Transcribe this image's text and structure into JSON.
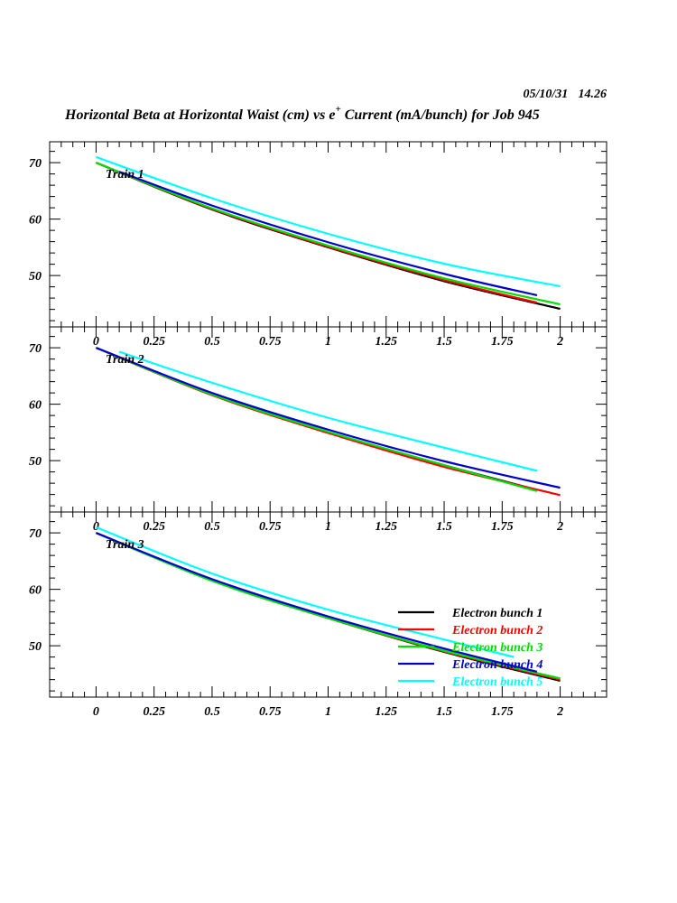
{
  "header": {
    "date": "05/10/31",
    "time": "14.26",
    "title_pre": "Horizontal Beta at Horizontal Waist (cm) vs e",
    "title_sup": "+",
    "title_post": " Current (mA/bunch) for Job 945"
  },
  "chart_data": [
    {
      "type": "line",
      "panel_label": "Train 1",
      "xlim": [
        -0.2,
        2.2
      ],
      "ylim": [
        40.9,
        73.7
      ],
      "xticks": [
        "0",
        "0.25",
        "0.5",
        "0.75",
        "1",
        "1.25",
        "1.5",
        "1.75",
        "2"
      ],
      "yticks": [
        "50",
        "60",
        "70"
      ],
      "series": [
        {
          "name": "Electron bunch 1",
          "color": "#000000",
          "points": [
            [
              0,
              70
            ],
            [
              0.5,
              61.7
            ],
            [
              1,
              55.0
            ],
            [
              1.5,
              49.0
            ],
            [
              2,
              44.1
            ]
          ]
        },
        {
          "name": "Electron bunch 2",
          "color": "#ff0000",
          "points": [
            [
              0,
              70
            ],
            [
              0.5,
              61.8
            ],
            [
              1,
              55.1
            ],
            [
              1.5,
              49.2
            ],
            [
              1.9,
              45.2
            ]
          ]
        },
        {
          "name": "Electron bunch 3",
          "color": "#00dd00",
          "points": [
            [
              0,
              70
            ],
            [
              0.5,
              61.9
            ],
            [
              1,
              55.3
            ],
            [
              1.5,
              49.5
            ],
            [
              2,
              44.9
            ]
          ]
        },
        {
          "name": "Electron bunch 4",
          "color": "#0000cc",
          "points": [
            [
              0.1,
              68.4
            ],
            [
              0.5,
              62.4
            ],
            [
              1,
              55.9
            ],
            [
              1.5,
              50.3
            ],
            [
              1.9,
              46.5
            ]
          ]
        },
        {
          "name": "Electron bunch 5",
          "color": "#00ffff",
          "points": [
            [
              0,
              71
            ],
            [
              0.5,
              63.7
            ],
            [
              1,
              57.4
            ],
            [
              1.5,
              52.1
            ],
            [
              2,
              48.1
            ]
          ]
        }
      ]
    },
    {
      "type": "line",
      "panel_label": "Train 2",
      "xlim": [
        -0.2,
        2.2
      ],
      "ylim": [
        40.9,
        73.7
      ],
      "xticks": [
        "0",
        "0.25",
        "0.5",
        "0.75",
        "1",
        "1.25",
        "1.5",
        "1.75",
        "2"
      ],
      "yticks": [
        "50",
        "60",
        "70"
      ],
      "series": [
        {
          "name": "Electron bunch 1",
          "color": "#000000",
          "points": [
            [
              0,
              70
            ],
            [
              0.5,
              61.7
            ],
            [
              1,
              55.0
            ],
            [
              1.5,
              49.2
            ],
            [
              1.9,
              44.8
            ]
          ]
        },
        {
          "name": "Electron bunch 2",
          "color": "#ff0000",
          "points": [
            [
              0,
              70
            ],
            [
              0.5,
              61.6
            ],
            [
              1,
              54.9
            ],
            [
              1.5,
              48.9
            ],
            [
              2,
              43.9
            ]
          ]
        },
        {
          "name": "Electron bunch 3",
          "color": "#00dd00",
          "points": [
            [
              0,
              70
            ],
            [
              0.5,
              61.7
            ],
            [
              1,
              55.1
            ],
            [
              1.5,
              49.2
            ],
            [
              1.9,
              44.6
            ]
          ]
        },
        {
          "name": "Electron bunch 4",
          "color": "#0000cc",
          "points": [
            [
              0,
              70
            ],
            [
              0.5,
              62.0
            ],
            [
              1,
              55.5
            ],
            [
              1.5,
              49.9
            ],
            [
              2,
              45.2
            ]
          ]
        },
        {
          "name": "Electron bunch 5",
          "color": "#00ffff",
          "points": [
            [
              0.1,
              69.3
            ],
            [
              0.5,
              63.8
            ],
            [
              1,
              57.6
            ],
            [
              1.5,
              52.3
            ],
            [
              1.9,
              48.2
            ]
          ]
        }
      ]
    },
    {
      "type": "line",
      "panel_label": "Train 3",
      "xlim": [
        -0.2,
        2.2
      ],
      "ylim": [
        40.9,
        73.7
      ],
      "xticks": [
        "0",
        "0.25",
        "0.5",
        "0.75",
        "1",
        "1.25",
        "1.5",
        "1.75",
        "2"
      ],
      "yticks": [
        "50",
        "60",
        "70"
      ],
      "legend": "bottom-right",
      "series": [
        {
          "name": "Electron bunch 1",
          "color": "#000000",
          "points": [
            [
              0,
              70
            ],
            [
              0.5,
              61.6
            ],
            [
              1,
              54.9
            ],
            [
              1.5,
              48.9
            ],
            [
              2,
              43.8
            ]
          ]
        },
        {
          "name": "Electron bunch 2",
          "color": "#ff0000",
          "points": [
            [
              0,
              70
            ],
            [
              0.5,
              61.6
            ],
            [
              1,
              54.9
            ],
            [
              1.5,
              49.0
            ],
            [
              2,
              44.0
            ]
          ]
        },
        {
          "name": "Electron bunch 3",
          "color": "#00dd00",
          "points": [
            [
              0,
              70
            ],
            [
              0.5,
              61.5
            ],
            [
              1,
              54.9
            ],
            [
              1.5,
              49.1
            ],
            [
              2,
              44.2
            ]
          ]
        },
        {
          "name": "Electron bunch 4",
          "color": "#0000cc",
          "points": [
            [
              0,
              70
            ],
            [
              0.5,
              61.8
            ],
            [
              1,
              55.2
            ],
            [
              1.5,
              49.5
            ],
            [
              1.9,
              45.4
            ]
          ]
        },
        {
          "name": "Electron bunch 5",
          "color": "#00ffff",
          "points": [
            [
              0,
              71
            ],
            [
              0.5,
              62.8
            ],
            [
              1,
              56.4
            ],
            [
              1.5,
              51.1
            ],
            [
              1.8,
              48.0
            ]
          ]
        }
      ]
    }
  ]
}
